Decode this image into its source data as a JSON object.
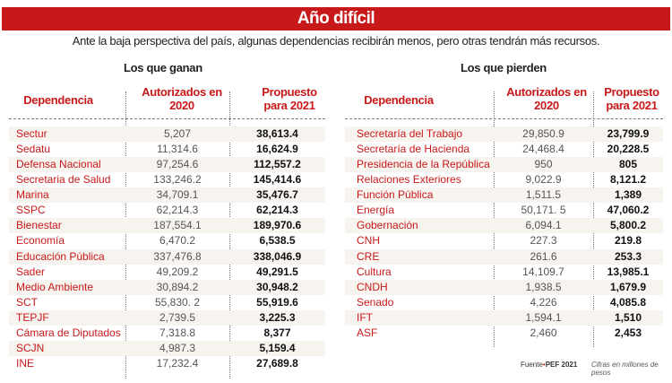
{
  "title": "Año difícil",
  "subtitle": "Ante la baja perspectiva del país, algunas dependencias recibirán menos, pero otras tendrán más recursos.",
  "colors": {
    "accent": "#c8191a",
    "row_shade": "#f7f3ee"
  },
  "ganan": {
    "title": "Los que ganan",
    "headers": [
      "Dependencia",
      "Autorizados en 2020",
      "Propuesto para 2021"
    ],
    "rows": [
      [
        "Sectur",
        "5,207",
        "38,613.4"
      ],
      [
        "Sedatu",
        "11,314.6",
        "16,624.9"
      ],
      [
        "Defensa Nacional",
        "97,254.6",
        "112,557.2"
      ],
      [
        "Secretaria de Salud",
        "133,246.2",
        "145,414.6"
      ],
      [
        "Marina",
        "34,709.1",
        "35,476.7"
      ],
      [
        "SSPC",
        "62,214.3",
        "62,214.3"
      ],
      [
        "Bienestar",
        "187,554.1",
        "189,970.6"
      ],
      [
        "Economía",
        "6,470.2",
        "6,538.5"
      ],
      [
        "Educación Pública",
        "337,476.8",
        "338,046.9"
      ],
      [
        "Sader",
        "49,209.2",
        "49,291.5"
      ],
      [
        "Medio Ambiente",
        "30,894.2",
        "30,948.2"
      ],
      [
        "SCT",
        "55,830. 2",
        "55,919.6"
      ],
      [
        "TEPJF",
        "2,739.5",
        "3,225.3"
      ],
      [
        "Cámara de Diputados",
        "7,318.8",
        "8,377"
      ],
      [
        "SCJN",
        "4,987.3",
        "5,159.4"
      ],
      [
        "INE",
        "17,232.4",
        "27,689.8"
      ]
    ]
  },
  "pierden": {
    "title": "Los que pierden",
    "headers": [
      "Dependencia",
      "Autorizados en 2020",
      "Propuesto para 2021"
    ],
    "rows": [
      [
        "Secretaría del Trabajo",
        "29,850.9",
        "23,799.9"
      ],
      [
        "Secretaría de Hacienda",
        "24,468.4",
        "20,228.5"
      ],
      [
        "Presidencia de la República",
        "950",
        "805"
      ],
      [
        "Relaciones Exteriores",
        "9,022.9",
        "8,121.2"
      ],
      [
        "Función Pública",
        "1,511.5",
        "1,389"
      ],
      [
        "Energía",
        "50,171. 5",
        "47,060.2"
      ],
      [
        "Gobernación",
        "6,094.1",
        "5,800.2"
      ],
      [
        "CNH",
        "227.3",
        "219.8"
      ],
      [
        "CRE",
        "261.6",
        "253.3"
      ],
      [
        "Cultura",
        "14,109.7",
        "13,985.1"
      ],
      [
        "CNDH",
        "1,938.5",
        "1,679.9"
      ],
      [
        "Senado",
        "4,226",
        "4,085.8"
      ],
      [
        "IFT",
        "1,594.1",
        "1,510"
      ],
      [
        "ASF",
        "2,460",
        "2,453"
      ]
    ]
  },
  "footer": {
    "source_label": "Fuente",
    "source": "PEF 2021",
    "note": "Cifras en millones de pesos"
  }
}
